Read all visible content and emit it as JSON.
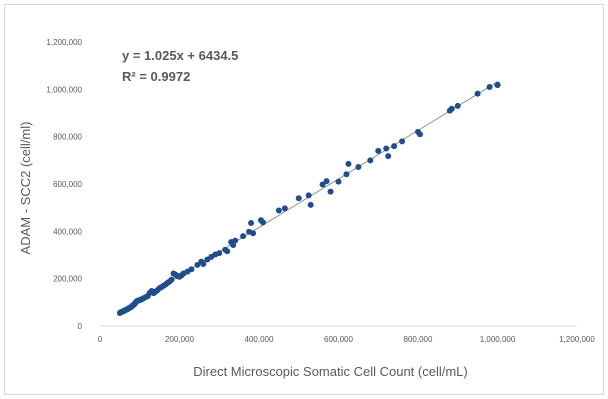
{
  "chart_data": {
    "type": "scatter",
    "xlabel": "Direct Microscopic Somatic Cell Count (cell/mL)",
    "ylabel": "ADAM - SCC2 (cell/ml)",
    "xlim": [
      0,
      1200000
    ],
    "ylim": [
      0,
      1200000
    ],
    "x_ticks": [
      "0",
      "200,000",
      "400,000",
      "600,000",
      "800,000",
      "1,000,000",
      "1,200,000"
    ],
    "y_ticks": [
      "0",
      "200,000",
      "400,000",
      "600,000",
      "800,000",
      "1,000,000",
      "1,200,000"
    ],
    "grid": false,
    "legend": "none",
    "trendline": {
      "slope": 1.025,
      "intercept": 6434.5,
      "equation": "y = 1.025x + 6434.5",
      "r2_label": "R² = 0.9972"
    },
    "marker_color": "#1f4e8c",
    "trendline_color": "#7f7f7f",
    "series": [
      {
        "points": [
          [
            50000,
            55000
          ],
          [
            52000,
            58000
          ],
          [
            55000,
            60000
          ],
          [
            58000,
            62000
          ],
          [
            60000,
            63000
          ],
          [
            62000,
            66000
          ],
          [
            65000,
            68000
          ],
          [
            68000,
            70000
          ],
          [
            70000,
            72000
          ],
          [
            72000,
            75000
          ],
          [
            75000,
            77000
          ],
          [
            78000,
            80000
          ],
          [
            80000,
            84000
          ],
          [
            82000,
            86000
          ],
          [
            85000,
            90000
          ],
          [
            88000,
            95000
          ],
          [
            90000,
            100000
          ],
          [
            92000,
            104000
          ],
          [
            95000,
            107000
          ],
          [
            100000,
            109000
          ],
          [
            102000,
            112000
          ],
          [
            105000,
            113000
          ],
          [
            110000,
            118000
          ],
          [
            115000,
            122000
          ],
          [
            120000,
            126000
          ],
          [
            125000,
            140000
          ],
          [
            130000,
            148000
          ],
          [
            135000,
            139000
          ],
          [
            140000,
            146000
          ],
          [
            145000,
            152000
          ],
          [
            150000,
            160000
          ],
          [
            155000,
            165000
          ],
          [
            160000,
            170000
          ],
          [
            165000,
            176000
          ],
          [
            170000,
            182000
          ],
          [
            175000,
            188000
          ],
          [
            180000,
            196000
          ],
          [
            185000,
            222000
          ],
          [
            190000,
            217000
          ],
          [
            195000,
            210000
          ],
          [
            200000,
            208000
          ],
          [
            205000,
            214000
          ],
          [
            210000,
            222000
          ],
          [
            220000,
            230000
          ],
          [
            230000,
            240000
          ],
          [
            245000,
            258000
          ],
          [
            255000,
            272000
          ],
          [
            260000,
            262000
          ],
          [
            270000,
            281000
          ],
          [
            280000,
            292000
          ],
          [
            290000,
            302000
          ],
          [
            300000,
            308000
          ],
          [
            315000,
            322000
          ],
          [
            320000,
            316000
          ],
          [
            335000,
            342000
          ],
          [
            340000,
            361000
          ],
          [
            360000,
            380000
          ],
          [
            375000,
            398000
          ],
          [
            380000,
            435000
          ],
          [
            385000,
            392000
          ],
          [
            405000,
            447000
          ],
          [
            410000,
            438000
          ],
          [
            450000,
            488000
          ],
          [
            465000,
            497000
          ],
          [
            500000,
            540000
          ],
          [
            525000,
            552000
          ],
          [
            530000,
            512000
          ],
          [
            560000,
            598000
          ],
          [
            570000,
            612000
          ],
          [
            580000,
            568000
          ],
          [
            600000,
            610000
          ],
          [
            620000,
            641000
          ],
          [
            625000,
            685000
          ],
          [
            650000,
            672000
          ],
          [
            680000,
            700000
          ],
          [
            700000,
            740000
          ],
          [
            720000,
            750000
          ],
          [
            725000,
            718000
          ],
          [
            740000,
            760000
          ],
          [
            760000,
            780000
          ],
          [
            800000,
            820000
          ],
          [
            805000,
            810000
          ],
          [
            880000,
            910000
          ],
          [
            885000,
            918000
          ],
          [
            900000,
            930000
          ],
          [
            950000,
            982000
          ],
          [
            980000,
            1010000
          ],
          [
            1000000,
            1018000
          ],
          [
            1000000,
            1020000
          ],
          [
            330000,
            355000
          ]
        ]
      }
    ]
  }
}
